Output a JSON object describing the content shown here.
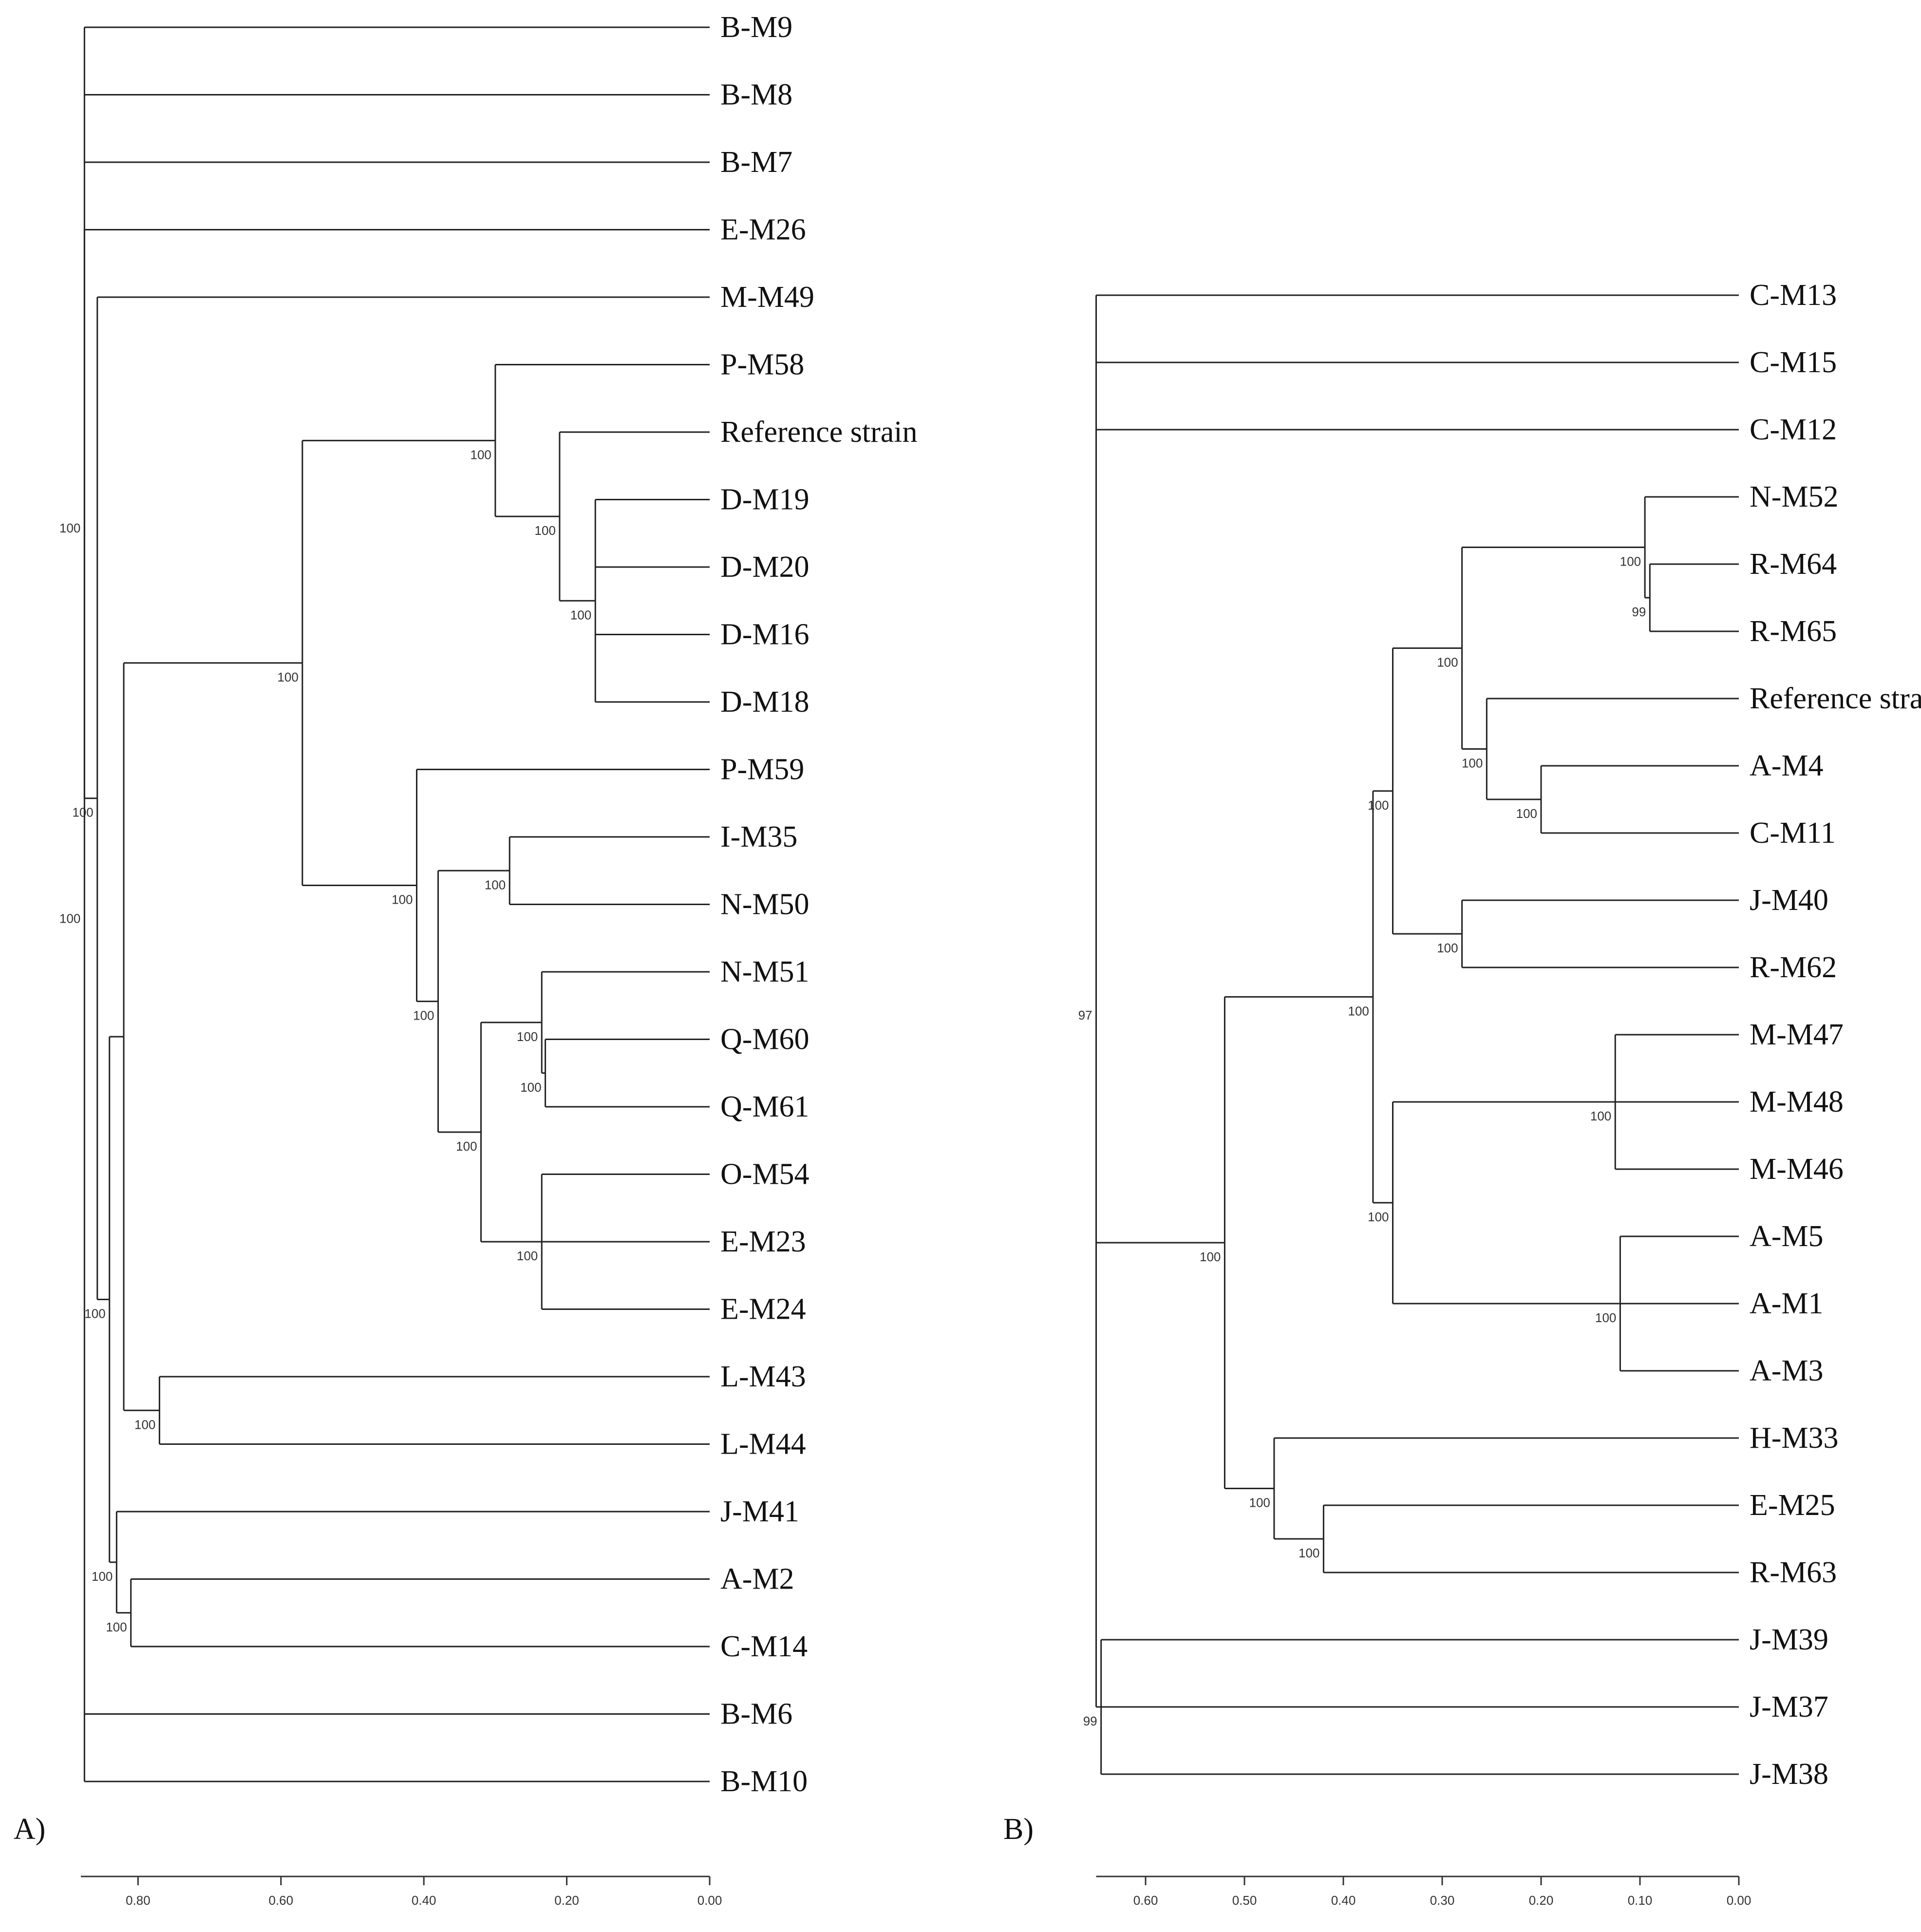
{
  "figure": {
    "panels": [
      {
        "id": "A",
        "label": "A)",
        "axis": {
          "ticks": [
            0.8,
            0.6,
            0.4,
            0.2,
            0.0
          ],
          "tick_labels": [
            "0.80",
            "0.60",
            "0.40",
            "0.20",
            "0.00"
          ],
          "max": 0.88
        },
        "leaves": [
          "B-M9",
          "B-M8",
          "B-M7",
          "E-M26",
          "M-M49",
          "P-M58",
          "Reference strain",
          "D-M19",
          "D-M20",
          "D-M16",
          "D-M18",
          "P-M59",
          "I-M35",
          "N-M50",
          "N-M51",
          "Q-M60",
          "Q-M61",
          "O-M54",
          "E-M23",
          "E-M24",
          "L-M43",
          "L-M44",
          "J-M41",
          "A-M2",
          "C-M14",
          "B-M6",
          "B-M10"
        ],
        "bootstrap_labels": [
          "100",
          "100",
          "100",
          "100",
          "100",
          "100",
          "100",
          "100",
          "100",
          "100",
          "100",
          "100",
          "100",
          "100",
          "100",
          "100",
          "100",
          "100"
        ]
      },
      {
        "id": "B",
        "label": "B)",
        "axis": {
          "ticks": [
            0.6,
            0.5,
            0.4,
            0.3,
            0.2,
            0.1,
            0.0
          ],
          "tick_labels": [
            "0.60",
            "0.50",
            "0.40",
            "0.30",
            "0.20",
            "0.10",
            "0.00"
          ],
          "max": 0.65
        },
        "leaves": [
          "C-M13",
          "C-M15",
          "C-M12",
          "N-M52",
          "R-M64",
          "R-M65",
          "Reference strain",
          "A-M4",
          "C-M11",
          "J-M40",
          "R-M62",
          "M-M47",
          "M-M48",
          "M-M46",
          "A-M5",
          "A-M1",
          "A-M3",
          "H-M33",
          "E-M25",
          "R-M63",
          "J-M39",
          "J-M37",
          "J-M38"
        ],
        "bootstrap_labels": [
          "100",
          "99",
          "100",
          "100",
          "100",
          "100",
          "100",
          "100",
          "100",
          "100",
          "100",
          "100",
          "100",
          "100",
          "97",
          "99"
        ]
      }
    ]
  },
  "chart_data": [
    {
      "type": "dendrogram",
      "panel": "A)",
      "x_axis": {
        "ticks": [
          0.8,
          0.6,
          0.4,
          0.2,
          0.0
        ],
        "direction": "decreasing-left-to-right",
        "range": [
          0.88,
          0.0
        ]
      },
      "leaves": [
        "B-M9",
        "B-M8",
        "B-M7",
        "E-M26",
        "M-M49",
        "P-M58",
        "Reference strain",
        "D-M19",
        "D-M20",
        "D-M16",
        "D-M18",
        "P-M59",
        "I-M35",
        "N-M50",
        "N-M51",
        "Q-M60",
        "Q-M61",
        "O-M54",
        "E-M23",
        "E-M24",
        "L-M43",
        "L-M44",
        "J-M41",
        "A-M2",
        "C-M14",
        "B-M6",
        "B-M10"
      ],
      "tree": {
        "h": 0.875,
        "bootstrap": 100,
        "children": [
          "B-M9",
          "B-M8",
          "B-M7",
          {
            "h": 0.875,
            "bootstrap": 100,
            "children": [
              "E-M26",
              {
                "h": 0.857,
                "bootstrap": 100,
                "children": [
                  "M-M49",
                  {
                    "h": 0.84,
                    "bootstrap": 100,
                    "children": [
                      {
                        "h": 0.82,
                        "bootstrap": null,
                        "children": [
                          {
                            "h": 0.57,
                            "bootstrap": 100,
                            "children": [
                              {
                                "h": 0.3,
                                "bootstrap": 100,
                                "children": [
                                  "P-M58",
                                  {
                                    "h": 0.21,
                                    "bootstrap": 100,
                                    "children": [
                                      "Reference strain",
                                      {
                                        "h": 0.16,
                                        "bootstrap": 100,
                                        "children": [
                                          "D-M19",
                                          "D-M20",
                                          "D-M16",
                                          "D-M18"
                                        ]
                                      }
                                    ]
                                  }
                                ]
                              },
                              {
                                "h": 0.41,
                                "bootstrap": 100,
                                "children": [
                                  "P-M59",
                                  {
                                    "h": 0.38,
                                    "bootstrap": 100,
                                    "children": [
                                      {
                                        "h": 0.28,
                                        "bootstrap": 100,
                                        "children": [
                                          "I-M35",
                                          "N-M50"
                                        ]
                                      },
                                      {
                                        "h": 0.32,
                                        "bootstrap": 100,
                                        "children": [
                                          {
                                            "h": 0.235,
                                            "bootstrap": 100,
                                            "children": [
                                              "N-M51",
                                              {
                                                "h": 0.23,
                                                "bootstrap": 100,
                                                "children": [
                                                  "Q-M60",
                                                  "Q-M61"
                                                ]
                                              }
                                            ]
                                          },
                                          {
                                            "h": 0.235,
                                            "bootstrap": 100,
                                            "children": [
                                              "O-M54",
                                              "E-M23",
                                              "E-M24"
                                            ]
                                          }
                                        ]
                                      }
                                    ]
                                  }
                                ]
                              }
                            ]
                          },
                          {
                            "h": 0.77,
                            "bootstrap": 100,
                            "children": [
                              "L-M43",
                              "L-M44"
                            ]
                          }
                        ]
                      },
                      {
                        "h": 0.83,
                        "bootstrap": 100,
                        "children": [
                          "J-M41",
                          {
                            "h": 0.81,
                            "bootstrap": 100,
                            "children": [
                              "A-M2",
                              "C-M14"
                            ]
                          }
                        ]
                      }
                    ]
                  }
                ]
              }
            ]
          },
          "B-M6",
          "B-M10"
        ]
      }
    },
    {
      "type": "dendrogram",
      "panel": "B)",
      "x_axis": {
        "ticks": [
          0.6,
          0.5,
          0.4,
          0.3,
          0.2,
          0.1,
          0.0
        ],
        "direction": "decreasing-left-to-right",
        "range": [
          0.65,
          0.0
        ]
      },
      "leaves": [
        "C-M13",
        "C-M15",
        "C-M12",
        "N-M52",
        "R-M64",
        "R-M65",
        "Reference strain",
        "A-M4",
        "C-M11",
        "J-M40",
        "R-M62",
        "M-M47",
        "M-M48",
        "M-M46",
        "A-M5",
        "A-M1",
        "A-M3",
        "H-M33",
        "E-M25",
        "R-M63",
        "J-M39",
        "J-M37",
        "J-M38"
      ],
      "tree": {
        "h": 0.65,
        "bootstrap": 97,
        "children": [
          "C-M13",
          "C-M15",
          "C-M12",
          {
            "h": 0.52,
            "bootstrap": 100,
            "children": [
              {
                "h": 0.37,
                "bootstrap": 100,
                "children": [
                  {
                    "h": 0.35,
                    "bootstrap": 100,
                    "children": [
                      {
                        "h": 0.28,
                        "bootstrap": 100,
                        "children": [
                          {
                            "h": 0.095,
                            "bootstrap": 100,
                            "children": [
                              "N-M52",
                              {
                                "h": 0.09,
                                "bootstrap": 99,
                                "children": [
                                  "R-M64",
                                  "R-M65"
                                ]
                              }
                            ]
                          },
                          {
                            "h": 0.255,
                            "bootstrap": 100,
                            "children": [
                              "Reference strain",
                              {
                                "h": 0.2,
                                "bootstrap": 100,
                                "children": [
                                  "A-M4",
                                  "C-M11"
                                ]
                              }
                            ]
                          }
                        ]
                      },
                      {
                        "h": 0.28,
                        "bootstrap": 100,
                        "children": [
                          "J-M40",
                          "R-M62"
                        ]
                      }
                    ]
                  },
                  {
                    "h": 0.35,
                    "bootstrap": 100,
                    "children": [
                      {
                        "h": 0.125,
                        "bootstrap": 100,
                        "children": [
                          "M-M47",
                          "M-M48",
                          "M-M46"
                        ]
                      },
                      {
                        "h": 0.12,
                        "bootstrap": 100,
                        "children": [
                          "A-M5",
                          "A-M1",
                          "A-M3"
                        ]
                      }
                    ]
                  }
                ]
              },
              {
                "h": 0.47,
                "bootstrap": 100,
                "children": [
                  "H-M33",
                  {
                    "h": 0.42,
                    "bootstrap": 100,
                    "children": [
                      "E-M25",
                      "R-M63"
                    ]
                  }
                ]
              }
            ]
          },
          {
            "h": 0.645,
            "bootstrap": 99,
            "children": [
              "J-M39",
              "J-M37",
              "J-M38"
            ]
          }
        ]
      }
    }
  ]
}
